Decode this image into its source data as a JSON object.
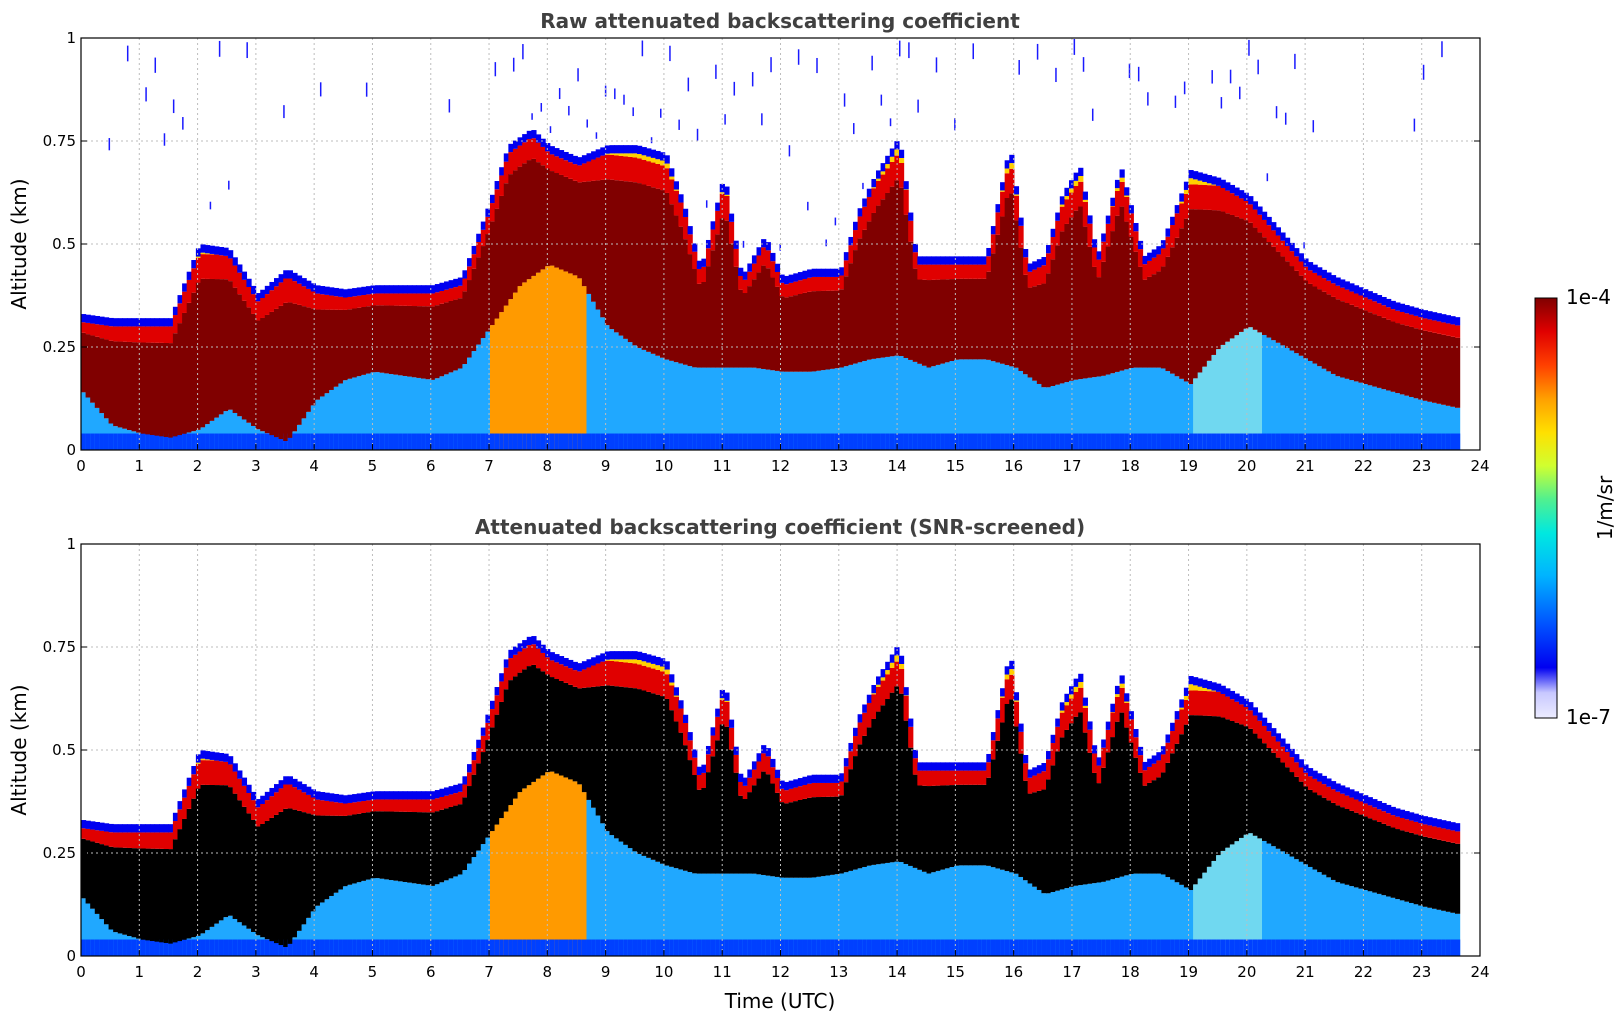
{
  "chart_data": [
    {
      "type": "heatmap",
      "title": "Raw attenuated backscattering coefficient",
      "xlabel": "",
      "ylabel": "Altitude (km)",
      "xlim": [
        0,
        24
      ],
      "ylim": [
        0,
        1
      ],
      "x_ticks": [
        "0",
        "1",
        "2",
        "3",
        "4",
        "5",
        "6",
        "7",
        "8",
        "9",
        "10",
        "11",
        "12",
        "13",
        "14",
        "15",
        "16",
        "17",
        "18",
        "19",
        "20",
        "21",
        "22",
        "23",
        "24"
      ],
      "y_ticks": [
        "0",
        "0.25",
        "0.5",
        "0.75",
        "1"
      ],
      "grid": true,
      "data_end_hour": 23.65,
      "cloud_top_km": [
        [
          0,
          0.31
        ],
        [
          0.5,
          0.3
        ],
        [
          1.0,
          0.3
        ],
        [
          1.5,
          0.3
        ],
        [
          2.0,
          0.48
        ],
        [
          2.5,
          0.47
        ],
        [
          3.0,
          0.36
        ],
        [
          3.5,
          0.42
        ],
        [
          4.0,
          0.38
        ],
        [
          4.5,
          0.37
        ],
        [
          5.0,
          0.38
        ],
        [
          5.5,
          0.38
        ],
        [
          6.0,
          0.38
        ],
        [
          6.5,
          0.4
        ],
        [
          6.9,
          0.55
        ],
        [
          7.3,
          0.72
        ],
        [
          7.7,
          0.76
        ],
        [
          8.0,
          0.72
        ],
        [
          8.5,
          0.69
        ],
        [
          9.0,
          0.72
        ],
        [
          9.5,
          0.72
        ],
        [
          10.0,
          0.7
        ],
        [
          10.3,
          0.58
        ],
        [
          10.6,
          0.42
        ],
        [
          11.0,
          0.65
        ],
        [
          11.3,
          0.4
        ],
        [
          11.7,
          0.5
        ],
        [
          12.0,
          0.4
        ],
        [
          12.5,
          0.42
        ],
        [
          13.0,
          0.42
        ],
        [
          13.3,
          0.56
        ],
        [
          13.6,
          0.65
        ],
        [
          14.0,
          0.74
        ],
        [
          14.3,
          0.45
        ],
        [
          15.0,
          0.45
        ],
        [
          15.5,
          0.45
        ],
        [
          15.9,
          0.72
        ],
        [
          16.2,
          0.43
        ],
        [
          16.5,
          0.45
        ],
        [
          16.8,
          0.6
        ],
        [
          17.1,
          0.67
        ],
        [
          17.4,
          0.45
        ],
        [
          17.8,
          0.67
        ],
        [
          18.2,
          0.45
        ],
        [
          18.5,
          0.48
        ],
        [
          19.0,
          0.66
        ],
        [
          19.5,
          0.64
        ],
        [
          20.0,
          0.6
        ],
        [
          20.5,
          0.52
        ],
        [
          21.0,
          0.44
        ],
        [
          21.5,
          0.4
        ],
        [
          22.0,
          0.37
        ],
        [
          22.5,
          0.34
        ],
        [
          23.0,
          0.32
        ],
        [
          23.65,
          0.3
        ]
      ],
      "cloud_bottom_km": [
        [
          0,
          0.14
        ],
        [
          0.5,
          0.06
        ],
        [
          1.0,
          0.04
        ],
        [
          1.5,
          0.03
        ],
        [
          2.0,
          0.05
        ],
        [
          2.5,
          0.1
        ],
        [
          3.0,
          0.05
        ],
        [
          3.5,
          0.02
        ],
        [
          4.0,
          0.12
        ],
        [
          4.5,
          0.17
        ],
        [
          5.0,
          0.19
        ],
        [
          5.5,
          0.18
        ],
        [
          6.0,
          0.17
        ],
        [
          6.5,
          0.2
        ],
        [
          7.0,
          0.3
        ],
        [
          7.5,
          0.4
        ],
        [
          8.0,
          0.45
        ],
        [
          8.5,
          0.42
        ],
        [
          9.0,
          0.3
        ],
        [
          9.5,
          0.25
        ],
        [
          10.0,
          0.22
        ],
        [
          10.5,
          0.2
        ],
        [
          11.0,
          0.2
        ],
        [
          11.5,
          0.2
        ],
        [
          12.0,
          0.19
        ],
        [
          12.5,
          0.19
        ],
        [
          13.0,
          0.2
        ],
        [
          13.5,
          0.22
        ],
        [
          14.0,
          0.23
        ],
        [
          14.5,
          0.2
        ],
        [
          15.0,
          0.22
        ],
        [
          15.5,
          0.22
        ],
        [
          16.0,
          0.2
        ],
        [
          16.5,
          0.15
        ],
        [
          17.0,
          0.17
        ],
        [
          17.5,
          0.18
        ],
        [
          18.0,
          0.2
        ],
        [
          18.5,
          0.2
        ],
        [
          19.0,
          0.16
        ],
        [
          19.5,
          0.25
        ],
        [
          20.0,
          0.3
        ],
        [
          20.5,
          0.26
        ],
        [
          21.0,
          0.22
        ],
        [
          21.5,
          0.18
        ],
        [
          22.0,
          0.16
        ],
        [
          22.5,
          0.14
        ],
        [
          23.0,
          0.12
        ],
        [
          23.65,
          0.1
        ]
      ]
    },
    {
      "type": "heatmap",
      "title": "Attenuated backscattering coefficient (SNR-screened)",
      "xlabel": "Time (UTC)",
      "ylabel": "Altitude (km)",
      "xlim": [
        0,
        24
      ],
      "ylim": [
        0,
        1
      ],
      "x_ticks": [
        "0",
        "1",
        "2",
        "3",
        "4",
        "5",
        "6",
        "7",
        "8",
        "9",
        "10",
        "11",
        "12",
        "13",
        "14",
        "15",
        "16",
        "17",
        "18",
        "19",
        "20",
        "21",
        "22",
        "23",
        "24"
      ],
      "y_ticks": [
        "0",
        "0.25",
        "0.5",
        "0.75",
        "1"
      ],
      "grid": true,
      "saturated_color": "#000000",
      "data_end_hour": 23.65
    }
  ],
  "colorbar": {
    "label": "1/m/sr",
    "max_label": "1e-4",
    "min_label": "1e-7",
    "min_value": 1e-07,
    "max_value": 0.0001,
    "scale": "log",
    "colors": [
      "#ececff",
      "#c8c8ff",
      "#0000f0",
      "#0050ff",
      "#00b4ff",
      "#00e8e0",
      "#50f090",
      "#d0ff30",
      "#ffe000",
      "#ffa000",
      "#ff4000",
      "#e00000",
      "#800000"
    ]
  }
}
